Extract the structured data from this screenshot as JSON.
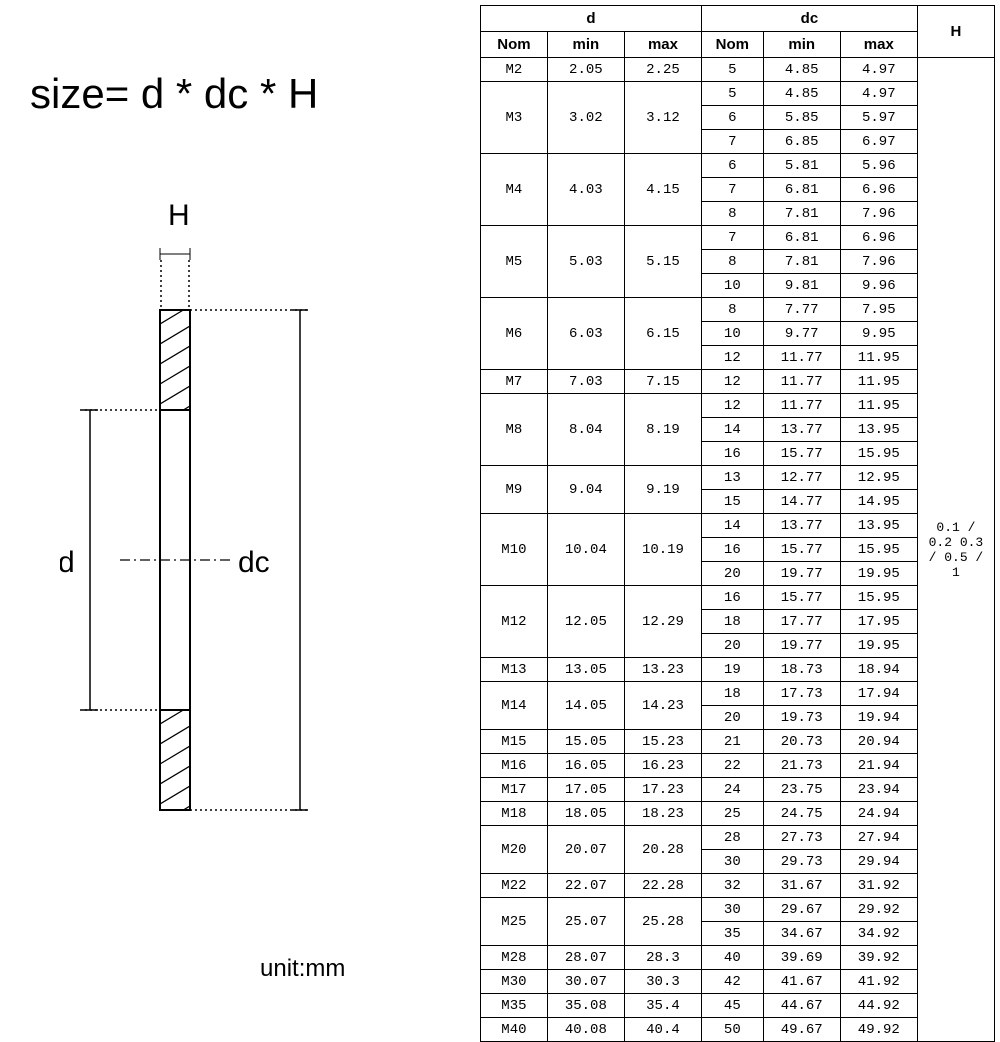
{
  "formula": "size= d * dc * H",
  "unit": "unit:mm",
  "labels": {
    "H": "H",
    "d": "d",
    "dc": "dc"
  },
  "table": {
    "header_groups": [
      "d",
      "dc",
      "H"
    ],
    "subheaders": [
      "Nom",
      "min",
      "max",
      "Nom",
      "min",
      "max"
    ],
    "h_value": "0.1 / 0.2 0.3 / 0.5 / 1",
    "rows": [
      {
        "d_nom": "M2",
        "d_min": "2.05",
        "d_max": "2.25",
        "sub": [
          {
            "dc_nom": "5",
            "dc_min": "4.85",
            "dc_max": "4.97"
          }
        ]
      },
      {
        "d_nom": "M3",
        "d_min": "3.02",
        "d_max": "3.12",
        "sub": [
          {
            "dc_nom": "5",
            "dc_min": "4.85",
            "dc_max": "4.97"
          },
          {
            "dc_nom": "6",
            "dc_min": "5.85",
            "dc_max": "5.97"
          },
          {
            "dc_nom": "7",
            "dc_min": "6.85",
            "dc_max": "6.97"
          }
        ]
      },
      {
        "d_nom": "M4",
        "d_min": "4.03",
        "d_max": "4.15",
        "sub": [
          {
            "dc_nom": "6",
            "dc_min": "5.81",
            "dc_max": "5.96"
          },
          {
            "dc_nom": "7",
            "dc_min": "6.81",
            "dc_max": "6.96"
          },
          {
            "dc_nom": "8",
            "dc_min": "7.81",
            "dc_max": "7.96"
          }
        ]
      },
      {
        "d_nom": "M5",
        "d_min": "5.03",
        "d_max": "5.15",
        "sub": [
          {
            "dc_nom": "7",
            "dc_min": "6.81",
            "dc_max": "6.96"
          },
          {
            "dc_nom": "8",
            "dc_min": "7.81",
            "dc_max": "7.96"
          },
          {
            "dc_nom": "10",
            "dc_min": "9.81",
            "dc_max": "9.96"
          }
        ]
      },
      {
        "d_nom": "M6",
        "d_min": "6.03",
        "d_max": "6.15",
        "sub": [
          {
            "dc_nom": "8",
            "dc_min": "7.77",
            "dc_max": "7.95"
          },
          {
            "dc_nom": "10",
            "dc_min": "9.77",
            "dc_max": "9.95"
          },
          {
            "dc_nom": "12",
            "dc_min": "11.77",
            "dc_max": "11.95"
          }
        ]
      },
      {
        "d_nom": "M7",
        "d_min": "7.03",
        "d_max": "7.15",
        "sub": [
          {
            "dc_nom": "12",
            "dc_min": "11.77",
            "dc_max": "11.95"
          }
        ]
      },
      {
        "d_nom": "M8",
        "d_min": "8.04",
        "d_max": "8.19",
        "sub": [
          {
            "dc_nom": "12",
            "dc_min": "11.77",
            "dc_max": "11.95"
          },
          {
            "dc_nom": "14",
            "dc_min": "13.77",
            "dc_max": "13.95"
          },
          {
            "dc_nom": "16",
            "dc_min": "15.77",
            "dc_max": "15.95"
          }
        ]
      },
      {
        "d_nom": "M9",
        "d_min": "9.04",
        "d_max": "9.19",
        "sub": [
          {
            "dc_nom": "13",
            "dc_min": "12.77",
            "dc_max": "12.95"
          },
          {
            "dc_nom": "15",
            "dc_min": "14.77",
            "dc_max": "14.95"
          }
        ]
      },
      {
        "d_nom": "M10",
        "d_min": "10.04",
        "d_max": "10.19",
        "sub": [
          {
            "dc_nom": "14",
            "dc_min": "13.77",
            "dc_max": "13.95"
          },
          {
            "dc_nom": "16",
            "dc_min": "15.77",
            "dc_max": "15.95"
          },
          {
            "dc_nom": "20",
            "dc_min": "19.77",
            "dc_max": "19.95"
          }
        ]
      },
      {
        "d_nom": "M12",
        "d_min": "12.05",
        "d_max": "12.29",
        "sub": [
          {
            "dc_nom": "16",
            "dc_min": "15.77",
            "dc_max": "15.95"
          },
          {
            "dc_nom": "18",
            "dc_min": "17.77",
            "dc_max": "17.95"
          },
          {
            "dc_nom": "20",
            "dc_min": "19.77",
            "dc_max": "19.95"
          }
        ]
      },
      {
        "d_nom": "M13",
        "d_min": "13.05",
        "d_max": "13.23",
        "sub": [
          {
            "dc_nom": "19",
            "dc_min": "18.73",
            "dc_max": "18.94"
          }
        ]
      },
      {
        "d_nom": "M14",
        "d_min": "14.05",
        "d_max": "14.23",
        "sub": [
          {
            "dc_nom": "18",
            "dc_min": "17.73",
            "dc_max": "17.94"
          },
          {
            "dc_nom": "20",
            "dc_min": "19.73",
            "dc_max": "19.94"
          }
        ]
      },
      {
        "d_nom": "M15",
        "d_min": "15.05",
        "d_max": "15.23",
        "sub": [
          {
            "dc_nom": "21",
            "dc_min": "20.73",
            "dc_max": "20.94"
          }
        ]
      },
      {
        "d_nom": "M16",
        "d_min": "16.05",
        "d_max": "16.23",
        "sub": [
          {
            "dc_nom": "22",
            "dc_min": "21.73",
            "dc_max": "21.94"
          }
        ]
      },
      {
        "d_nom": "M17",
        "d_min": "17.05",
        "d_max": "17.23",
        "sub": [
          {
            "dc_nom": "24",
            "dc_min": "23.75",
            "dc_max": "23.94"
          }
        ]
      },
      {
        "d_nom": "M18",
        "d_min": "18.05",
        "d_max": "18.23",
        "sub": [
          {
            "dc_nom": "25",
            "dc_min": "24.75",
            "dc_max": "24.94"
          }
        ]
      },
      {
        "d_nom": "M20",
        "d_min": "20.07",
        "d_max": "20.28",
        "sub": [
          {
            "dc_nom": "28",
            "dc_min": "27.73",
            "dc_max": "27.94"
          },
          {
            "dc_nom": "30",
            "dc_min": "29.73",
            "dc_max": "29.94"
          }
        ]
      },
      {
        "d_nom": "M22",
        "d_min": "22.07",
        "d_max": "22.28",
        "sub": [
          {
            "dc_nom": "32",
            "dc_min": "31.67",
            "dc_max": "31.92"
          }
        ]
      },
      {
        "d_nom": "M25",
        "d_min": "25.07",
        "d_max": "25.28",
        "sub": [
          {
            "dc_nom": "30",
            "dc_min": "29.67",
            "dc_max": "29.92"
          },
          {
            "dc_nom": "35",
            "dc_min": "34.67",
            "dc_max": "34.92"
          }
        ]
      },
      {
        "d_nom": "M28",
        "d_min": "28.07",
        "d_max": "28.3",
        "sub": [
          {
            "dc_nom": "40",
            "dc_min": "39.69",
            "dc_max": "39.92"
          }
        ]
      },
      {
        "d_nom": "M30",
        "d_min": "30.07",
        "d_max": "30.3",
        "sub": [
          {
            "dc_nom": "42",
            "dc_min": "41.67",
            "dc_max": "41.92"
          }
        ]
      },
      {
        "d_nom": "M35",
        "d_min": "35.08",
        "d_max": "35.4",
        "sub": [
          {
            "dc_nom": "45",
            "dc_min": "44.67",
            "dc_max": "44.92"
          }
        ]
      },
      {
        "d_nom": "M40",
        "d_min": "40.08",
        "d_max": "40.4",
        "sub": [
          {
            "dc_nom": "50",
            "dc_min": "49.67",
            "dc_max": "49.92"
          }
        ]
      }
    ],
    "col_widths_pct": [
      13,
      15,
      15,
      12,
      15,
      15,
      15
    ]
  },
  "colors": {
    "border": "#000000",
    "bg": "#ffffff",
    "text": "#000000"
  }
}
